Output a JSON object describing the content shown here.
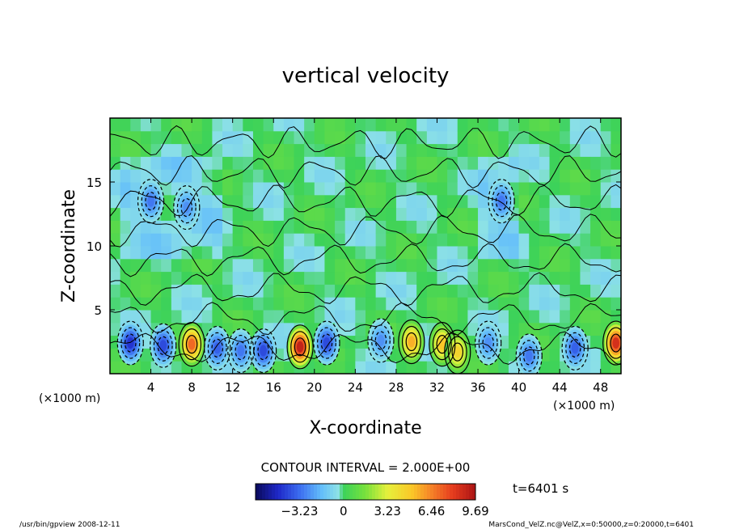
{
  "chart_data": {
    "type": "heatmap",
    "title": "vertical velocity",
    "xlabel": "X-coordinate",
    "ylabel": "Z-coordinate",
    "x_unit": "(×1000 m)",
    "x_unit_left": "(×1000 m)",
    "xlim": [
      0,
      50
    ],
    "ylim": [
      0,
      20
    ],
    "x_ticks": [
      "4",
      "8",
      "12",
      "16",
      "20",
      "24",
      "28",
      "32",
      "36",
      "40",
      "44",
      "48"
    ],
    "y_ticks": [
      "5",
      "10",
      "15"
    ],
    "contour_interval": "CONTOUR INTERVAL = 2.000E+00",
    "time_label": "t=6401 s",
    "colorbar": {
      "range": [
        -6.46,
        9.69
      ],
      "tick_labels": [
        "−3.23",
        "0",
        "3.23",
        "6.46",
        "9.69"
      ],
      "tick_values": [
        -3.23,
        0,
        3.23,
        6.46,
        9.69
      ]
    },
    "features": [
      {
        "x": 2.0,
        "z": 2.4,
        "w": -4.5
      },
      {
        "x": 5.2,
        "z": 2.2,
        "w": -4.0
      },
      {
        "x": 8.0,
        "z": 2.3,
        "w": 7.0
      },
      {
        "x": 10.5,
        "z": 2.0,
        "w": -3.5
      },
      {
        "x": 12.8,
        "z": 1.8,
        "w": -3.0
      },
      {
        "x": 15.0,
        "z": 1.8,
        "w": -4.0
      },
      {
        "x": 18.6,
        "z": 2.1,
        "w": 9.0
      },
      {
        "x": 21.2,
        "z": 2.4,
        "w": -4.0
      },
      {
        "x": 26.5,
        "z": 2.6,
        "w": -2.5
      },
      {
        "x": 29.5,
        "z": 2.5,
        "w": 5.5
      },
      {
        "x": 32.5,
        "z": 2.3,
        "w": 5.0
      },
      {
        "x": 34.0,
        "z": 1.7,
        "w": 4.5
      },
      {
        "x": 37.0,
        "z": 2.4,
        "w": -2.5
      },
      {
        "x": 41.0,
        "z": 1.4,
        "w": -3.0
      },
      {
        "x": 45.5,
        "z": 2.0,
        "w": -3.5
      },
      {
        "x": 49.5,
        "z": 2.4,
        "w": 8.5
      },
      {
        "x": 4.0,
        "z": 13.5,
        "w": -3.0
      },
      {
        "x": 7.5,
        "z": 13.0,
        "w": -2.5
      },
      {
        "x": 38.3,
        "z": 13.5,
        "w": -3.0
      }
    ]
  },
  "footer": {
    "left": "/usr/bin/gpview   2008-12-11",
    "right": "MarsCond_VelZ.nc@VelZ,x=0:50000,z=0:20000,t=6401"
  }
}
